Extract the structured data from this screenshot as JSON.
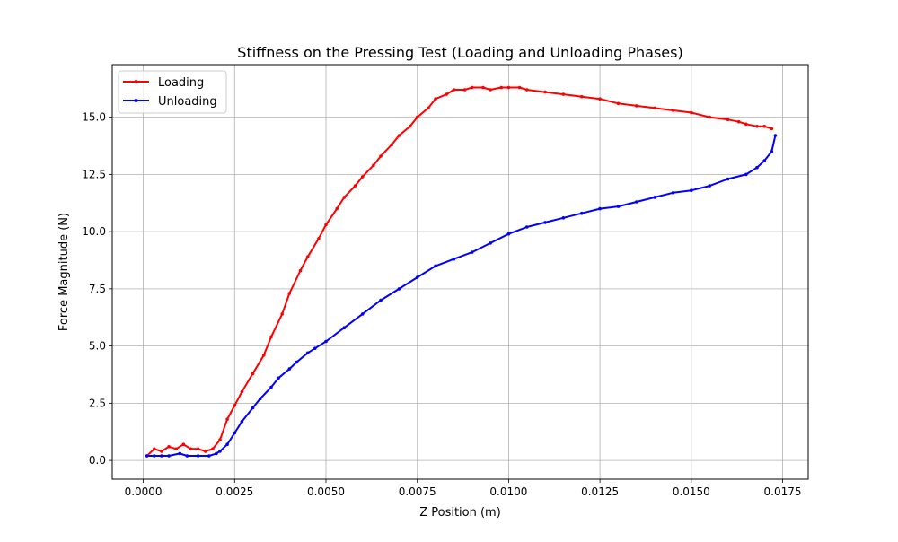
{
  "chart_data": {
    "type": "line",
    "title": "Stiffness on the Pressing Test (Loading and Unloading Phases)",
    "xlabel": "Z Position (m)",
    "ylabel": "Force Magnitude (N)",
    "xlim": [
      -0.00085,
      0.0182
    ],
    "ylim": [
      -0.82,
      17.3
    ],
    "xticks": [
      {
        "value": 0.0,
        "label": "0.0000"
      },
      {
        "value": 0.0025,
        "label": "0.0025"
      },
      {
        "value": 0.005,
        "label": "0.0050"
      },
      {
        "value": 0.0075,
        "label": "0.0075"
      },
      {
        "value": 0.01,
        "label": "0.0100"
      },
      {
        "value": 0.0125,
        "label": "0.0125"
      },
      {
        "value": 0.015,
        "label": "0.0150"
      },
      {
        "value": 0.0175,
        "label": "0.0175"
      }
    ],
    "yticks": [
      {
        "value": 0.0,
        "label": "0.0"
      },
      {
        "value": 2.5,
        "label": "2.5"
      },
      {
        "value": 5.0,
        "label": "5.0"
      },
      {
        "value": 7.5,
        "label": "7.5"
      },
      {
        "value": 10.0,
        "label": "10.0"
      },
      {
        "value": 12.5,
        "label": "12.5"
      },
      {
        "value": 15.0,
        "label": "15.0"
      }
    ],
    "grid": true,
    "legend": "upper-left",
    "series": [
      {
        "name": "Loading",
        "color": "#ff0000",
        "marker": "dot",
        "x": [
          0.0001,
          0.0003,
          0.0005,
          0.0007,
          0.0009,
          0.0011,
          0.0013,
          0.0015,
          0.0017,
          0.0019,
          0.0021,
          0.0023,
          0.0025,
          0.0027,
          0.003,
          0.0033,
          0.0035,
          0.0038,
          0.004,
          0.0043,
          0.0045,
          0.0048,
          0.005,
          0.0053,
          0.0055,
          0.0058,
          0.006,
          0.0063,
          0.0065,
          0.0068,
          0.007,
          0.0073,
          0.0075,
          0.0078,
          0.008,
          0.0083,
          0.0085,
          0.0088,
          0.009,
          0.0093,
          0.0095,
          0.0098,
          0.01,
          0.0103,
          0.0105,
          0.011,
          0.0115,
          0.012,
          0.0125,
          0.013,
          0.0135,
          0.014,
          0.0145,
          0.015,
          0.0155,
          0.016,
          0.0163,
          0.0165,
          0.0168,
          0.017,
          0.0172
        ],
        "y": [
          0.2,
          0.5,
          0.4,
          0.6,
          0.5,
          0.7,
          0.5,
          0.5,
          0.4,
          0.5,
          0.9,
          1.8,
          2.4,
          3.0,
          3.8,
          4.6,
          5.4,
          6.4,
          7.3,
          8.3,
          8.9,
          9.7,
          10.3,
          11.0,
          11.5,
          12.0,
          12.4,
          12.9,
          13.3,
          13.8,
          14.2,
          14.6,
          15.0,
          15.4,
          15.8,
          16.0,
          16.2,
          16.2,
          16.3,
          16.3,
          16.2,
          16.3,
          16.3,
          16.3,
          16.2,
          16.1,
          16.0,
          15.9,
          15.8,
          15.6,
          15.5,
          15.4,
          15.3,
          15.2,
          15.0,
          14.9,
          14.8,
          14.7,
          14.6,
          14.6,
          14.5
        ]
      },
      {
        "name": "Unloading",
        "color": "#0000ff",
        "marker": "dot",
        "x": [
          0.0173,
          0.0172,
          0.017,
          0.0168,
          0.0165,
          0.016,
          0.0155,
          0.015,
          0.0145,
          0.014,
          0.0135,
          0.013,
          0.0125,
          0.012,
          0.0115,
          0.011,
          0.0105,
          0.01,
          0.0095,
          0.009,
          0.0085,
          0.008,
          0.0075,
          0.007,
          0.0065,
          0.006,
          0.0055,
          0.005,
          0.0047,
          0.0045,
          0.0042,
          0.004,
          0.0037,
          0.0035,
          0.0032,
          0.003,
          0.0027,
          0.0025,
          0.0023,
          0.0021,
          0.002,
          0.0018,
          0.0015,
          0.0012,
          0.001,
          0.0007,
          0.0005,
          0.0003,
          0.0001
        ],
        "y": [
          14.2,
          13.5,
          13.1,
          12.8,
          12.5,
          12.3,
          12.0,
          11.8,
          11.7,
          11.5,
          11.3,
          11.1,
          11.0,
          10.8,
          10.6,
          10.4,
          10.2,
          9.9,
          9.5,
          9.1,
          8.8,
          8.5,
          8.0,
          7.5,
          7.0,
          6.4,
          5.8,
          5.2,
          4.9,
          4.7,
          4.3,
          4.0,
          3.6,
          3.2,
          2.7,
          2.3,
          1.7,
          1.2,
          0.7,
          0.4,
          0.3,
          0.2,
          0.2,
          0.2,
          0.3,
          0.2,
          0.2,
          0.2,
          0.2
        ]
      }
    ]
  }
}
